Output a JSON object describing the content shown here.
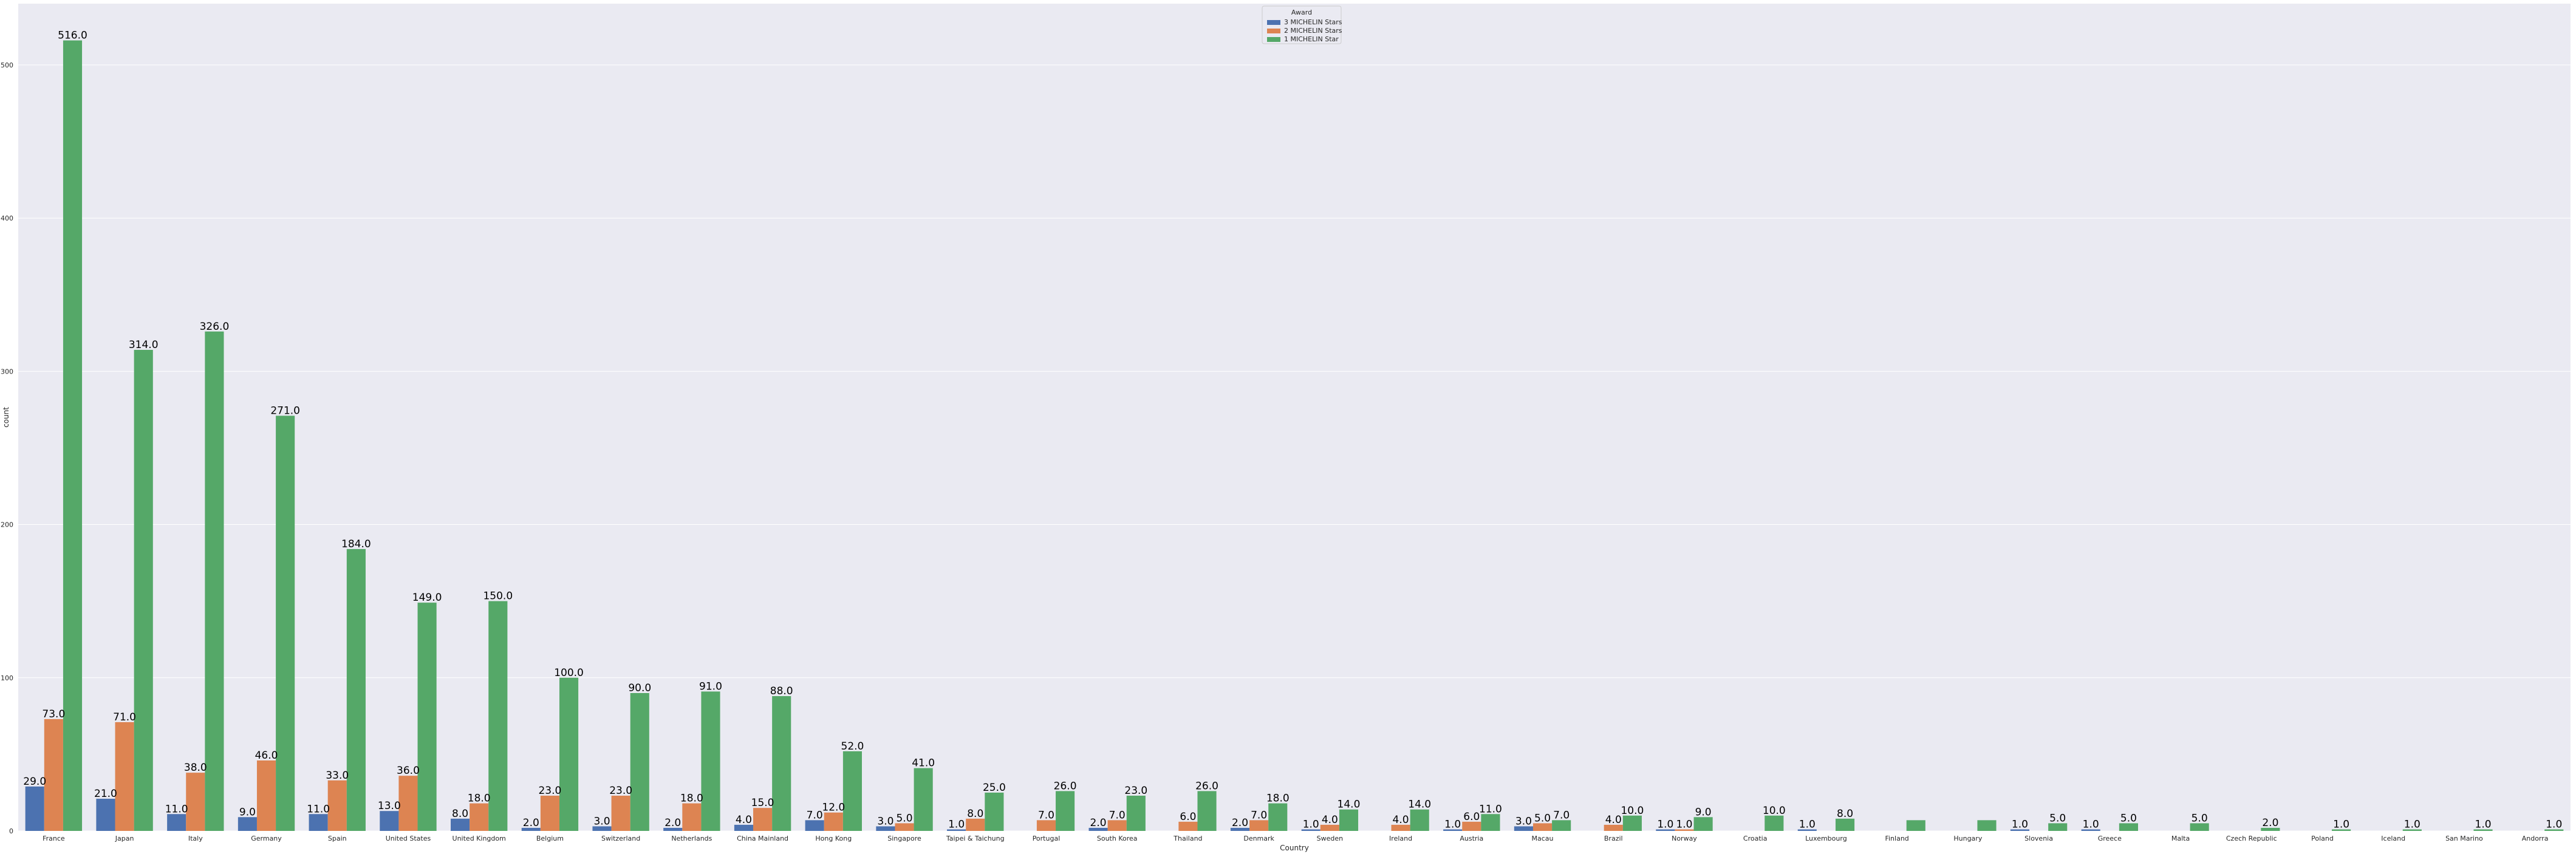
{
  "chart_data": {
    "type": "bar",
    "xlabel": "Country",
    "ylabel": "count",
    "ylim": [
      0,
      540
    ],
    "yticks": [
      0,
      100,
      200,
      300,
      400,
      500
    ],
    "grid": true,
    "legend": {
      "title": "Award",
      "placement": "top-center"
    },
    "categories": [
      "France",
      "Japan",
      "Italy",
      "Germany",
      "Spain",
      "United States",
      "United Kingdom",
      "Belgium",
      "Switzerland",
      "Netherlands",
      "China Mainland",
      "Hong Kong",
      "Singapore",
      "Taipei & Taichung",
      "Portugal",
      "South Korea",
      "Thailand",
      "Denmark",
      "Sweden",
      "Ireland",
      "Austria",
      "Macau",
      "Brazil",
      "Norway",
      "Croatia",
      "Luxembourg",
      "Finland",
      "Hungary",
      "Slovenia",
      "Greece",
      "Malta",
      "Czech Republic",
      "Poland",
      "Iceland",
      "San Marino",
      "Andorra"
    ],
    "series": [
      {
        "name": "3 MICHELIN Stars",
        "color": "#4c72b0",
        "values": [
          29,
          21,
          11,
          9,
          11,
          13,
          8,
          2,
          3,
          2,
          4,
          7,
          3,
          1,
          null,
          2,
          null,
          2,
          1,
          null,
          1,
          3,
          null,
          1,
          null,
          1,
          null,
          null,
          1,
          1,
          null,
          null,
          null,
          null,
          null,
          null
        ],
        "labels": [
          "29.0",
          "21.0",
          "11.0",
          "9.0",
          "11.0",
          "13.0",
          "8.0",
          "2.0",
          "3.0",
          "2.0",
          "4.0",
          "7.0",
          "3.0",
          "1.0",
          "",
          "2.0",
          "",
          "2.0",
          "1.0",
          "",
          "1.0",
          "3.0",
          "",
          "1.0",
          "",
          "1.0",
          "",
          "",
          "1.0",
          "1.0",
          "",
          "",
          "",
          "",
          "",
          ""
        ]
      },
      {
        "name": "2 MICHELIN Stars",
        "color": "#dd8452",
        "values": [
          73,
          71,
          38,
          46,
          33,
          36,
          18,
          23,
          23,
          18,
          15,
          12,
          5,
          8,
          7,
          7,
          6,
          7,
          4,
          4,
          6,
          5,
          4,
          1,
          null,
          null,
          null,
          null,
          null,
          null,
          null,
          null,
          null,
          null,
          null,
          null
        ],
        "labels": [
          "73.0",
          "71.0",
          "38.0",
          "46.0",
          "33.0",
          "36.0",
          "18.0",
          "23.0",
          "23.0",
          "18.0",
          "15.0",
          "12.0",
          "5.0",
          "8.0",
          "7.0",
          "7.0",
          "6.0",
          "7.0",
          "4.0",
          "4.0",
          "6.0",
          "5.0",
          "4.0",
          "1.0",
          "",
          "",
          "",
          "",
          "",
          "",
          "",
          "",
          "",
          "",
          "",
          ""
        ]
      },
      {
        "name": "1 MICHELIN Star",
        "color": "#55a868",
        "values": [
          516,
          314,
          326,
          271,
          184,
          149,
          150,
          100,
          90,
          91,
          88,
          52,
          41,
          25,
          26,
          23,
          26,
          18,
          14,
          14,
          11,
          7,
          10,
          9,
          10,
          8,
          7,
          7,
          5,
          5,
          5,
          2,
          1,
          1,
          1,
          1
        ],
        "labels": [
          "516.0",
          "314.0",
          "326.0",
          "271.0",
          "184.0",
          "149.0",
          "150.0",
          "100.0",
          "90.0",
          "91.0",
          "88.0",
          "52.0",
          "41.0",
          "25.0",
          "26.0",
          "23.0",
          "26.0",
          "18.0",
          "14.0",
          "14.0",
          "11.0",
          "7.0",
          "10.0",
          "9.0",
          "10.0",
          "8.0",
          "",
          "",
          "5.0",
          "5.0",
          "5.0",
          "2.0",
          "1.0",
          "1.0",
          "1.0",
          "1.0"
        ]
      }
    ]
  }
}
